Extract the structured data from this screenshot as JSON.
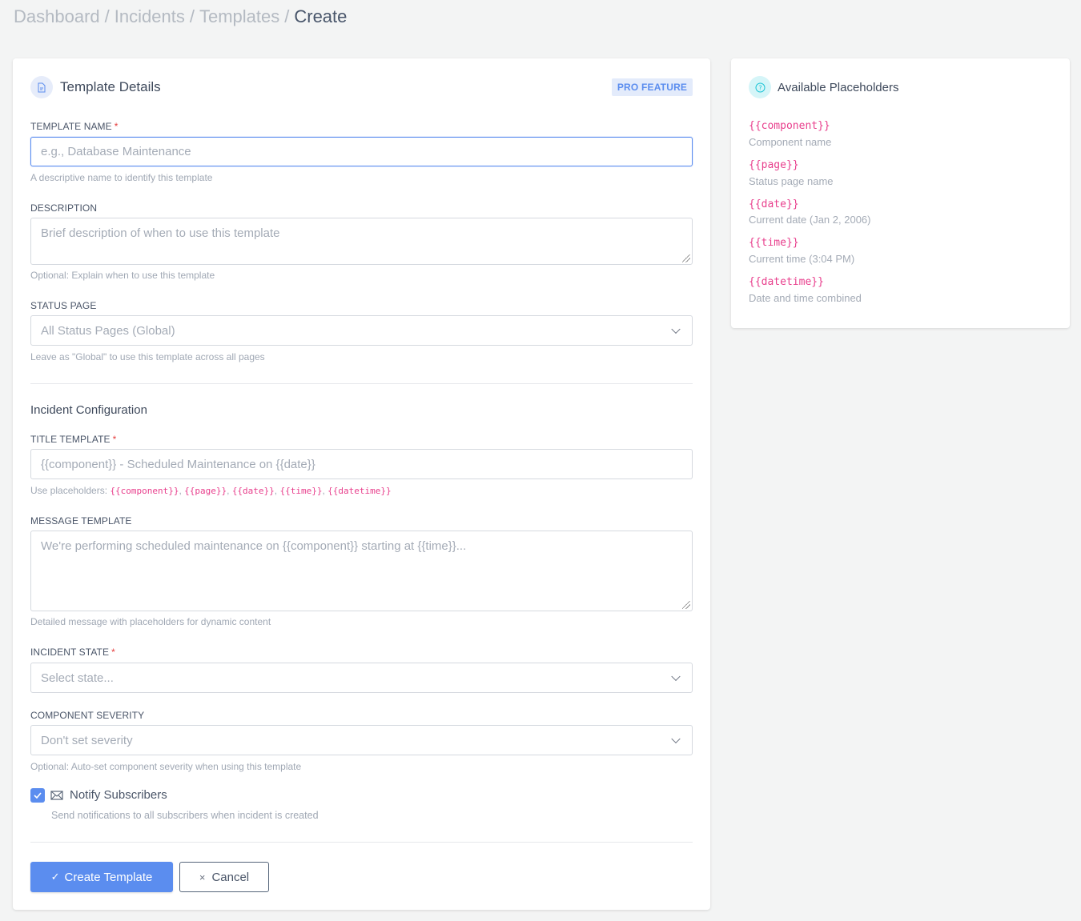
{
  "breadcrumb": {
    "items": [
      "Dashboard",
      "Incidents",
      "Templates"
    ],
    "current": "Create"
  },
  "form": {
    "title": "Template Details",
    "badge": "PRO FEATURE",
    "template_name": {
      "label": "TEMPLATE NAME",
      "required": "*",
      "placeholder": "e.g., Database Maintenance",
      "help": "A descriptive name to identify this template"
    },
    "description": {
      "label": "DESCRIPTION",
      "placeholder": "Brief description of when to use this template",
      "help": "Optional: Explain when to use this template"
    },
    "status_page": {
      "label": "STATUS PAGE",
      "value": "All Status Pages (Global)",
      "help": "Leave as \"Global\" to use this template across all pages"
    },
    "section_title": "Incident Configuration",
    "title_template": {
      "label": "TITLE TEMPLATE",
      "required": "*",
      "placeholder": "{{component}} - Scheduled Maintenance on {{date}}",
      "help_prefix": "Use placeholders: ",
      "help_codes": [
        "{{component}}",
        "{{page}}",
        "{{date}}",
        "{{time}}",
        "{{datetime}}"
      ],
      "sep": ", "
    },
    "message_template": {
      "label": "MESSAGE TEMPLATE",
      "placeholder": "We're performing scheduled maintenance on {{component}} starting at {{time}}...",
      "help": "Detailed message with placeholders for dynamic content"
    },
    "incident_state": {
      "label": "INCIDENT STATE",
      "required": "*",
      "value": "Select state..."
    },
    "component_severity": {
      "label": "COMPONENT SEVERITY",
      "value": "Don't set severity",
      "help": "Optional: Auto-set component severity when using this template"
    },
    "notify": {
      "label": "Notify Subscribers",
      "checked": true,
      "help": "Send notifications to all subscribers when incident is created"
    },
    "create_label": "Create Template",
    "cancel_label": "Cancel"
  },
  "placeholders": {
    "title": "Available Placeholders",
    "items": [
      {
        "code": "{{component}}",
        "desc": "Component name"
      },
      {
        "code": "{{page}}",
        "desc": "Status page name"
      },
      {
        "code": "{{date}}",
        "desc": "Current date (Jan 2, 2006)"
      },
      {
        "code": "{{time}}",
        "desc": "Current time (3:04 PM)"
      },
      {
        "code": "{{datetime}}",
        "desc": "Date and time combined"
      }
    ]
  },
  "colors": {
    "accent": "#5b8def",
    "code": "#e83e8c",
    "required": "#e53e3e"
  }
}
